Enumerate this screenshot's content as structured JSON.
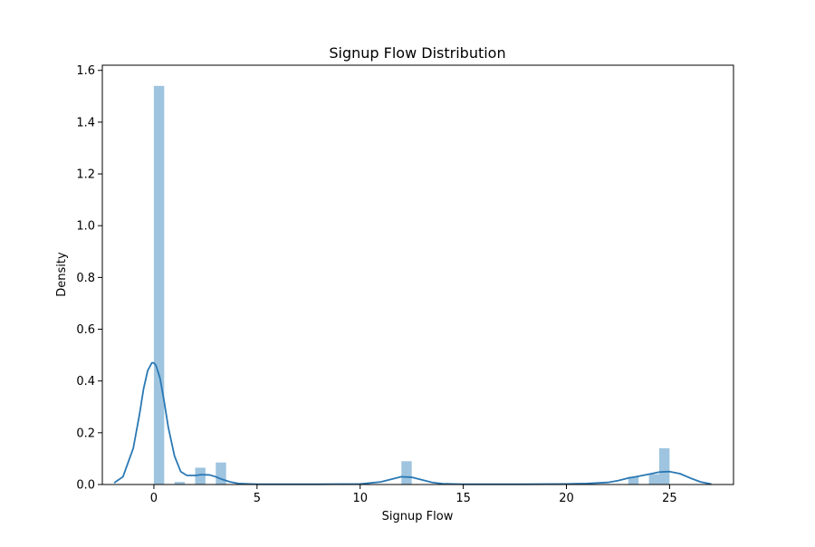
{
  "chart_data": {
    "type": "bar",
    "subtype": "histogram-with-kde",
    "title": "Signup Flow Distribution",
    "xlabel": "Signup Flow",
    "ylabel": "Density",
    "xlim": [
      -2.5,
      28.1
    ],
    "ylim": [
      0,
      1.62
    ],
    "x_ticks": [
      0,
      5,
      10,
      15,
      20,
      25
    ],
    "y_ticks": [
      0.0,
      0.2,
      0.4,
      0.6,
      0.8,
      1.0,
      1.2,
      1.4,
      1.6
    ],
    "grid": false,
    "legend": false,
    "bar_color": "#9ec4df",
    "kde_color": "#2a78b4",
    "bins": [
      {
        "x0": 0.0,
        "x1": 0.5,
        "density": 1.54
      },
      {
        "x0": 1.0,
        "x1": 1.5,
        "density": 0.01
      },
      {
        "x0": 2.0,
        "x1": 2.5,
        "density": 0.065
      },
      {
        "x0": 3.0,
        "x1": 3.5,
        "density": 0.085
      },
      {
        "x0": 12.0,
        "x1": 12.5,
        "density": 0.09
      },
      {
        "x0": 23.0,
        "x1": 23.5,
        "density": 0.03
      },
      {
        "x0": 24.0,
        "x1": 24.5,
        "density": 0.04
      },
      {
        "x0": 24.5,
        "x1": 25.0,
        "density": 0.14
      }
    ],
    "kde": {
      "x": [
        -1.9,
        -1.5,
        -1.0,
        -0.7,
        -0.5,
        -0.3,
        -0.1,
        0.0,
        0.1,
        0.3,
        0.5,
        0.7,
        1.0,
        1.3,
        1.6,
        2.0,
        2.3,
        2.7,
        3.0,
        3.3,
        3.7,
        4.1,
        4.6,
        5.0,
        6.0,
        8.0,
        10.0,
        11.0,
        11.5,
        12.0,
        12.5,
        13.0,
        13.5,
        14.0,
        15.0,
        18.0,
        20.0,
        21.0,
        22.0,
        22.5,
        23.0,
        23.5,
        24.0,
        24.5,
        25.0,
        25.5,
        26.0,
        26.5,
        27.0
      ],
      "y": [
        0.008,
        0.03,
        0.14,
        0.27,
        0.37,
        0.44,
        0.47,
        0.47,
        0.46,
        0.41,
        0.32,
        0.22,
        0.11,
        0.05,
        0.035,
        0.035,
        0.038,
        0.037,
        0.03,
        0.02,
        0.01,
        0.004,
        0.002,
        0.001,
        0.001,
        0.001,
        0.002,
        0.01,
        0.02,
        0.03,
        0.028,
        0.018,
        0.008,
        0.003,
        0.001,
        0.001,
        0.002,
        0.004,
        0.008,
        0.015,
        0.025,
        0.032,
        0.04,
        0.048,
        0.05,
        0.042,
        0.025,
        0.01,
        0.002
      ]
    }
  }
}
